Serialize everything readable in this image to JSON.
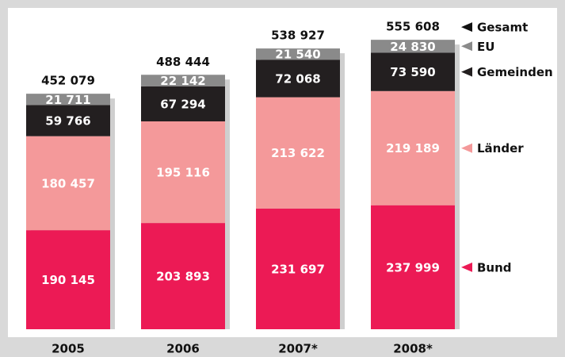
{
  "chart_data": {
    "type": "stacked-bar",
    "categories": [
      "2005",
      "2006",
      "2007*",
      "2008*"
    ],
    "series": [
      {
        "name": "Bund",
        "color": "#ec1a55",
        "values": [
          190145,
          203893,
          231697,
          237999
        ],
        "value_labels": [
          "190 145",
          "203 893",
          "231 697",
          "237 999"
        ]
      },
      {
        "name": "Länder",
        "color": "#f4999a",
        "values": [
          180457,
          195116,
          213622,
          219189
        ],
        "value_labels": [
          "180 457",
          "195 116",
          "213 622",
          "219 189"
        ]
      },
      {
        "name": "Gemeinden",
        "color": "#231f20",
        "values": [
          59766,
          67294,
          72068,
          73590
        ],
        "value_labels": [
          "59 766",
          "67 294",
          "72 068",
          "73 590"
        ]
      },
      {
        "name": "EU",
        "color": "#8a8a8a",
        "values": [
          21711,
          22142,
          21540,
          24830
        ],
        "value_labels": [
          "21 711",
          "22 142",
          "21 540",
          "24 830"
        ]
      }
    ],
    "totals": {
      "name": "Gesamt",
      "color": "#111111",
      "values": [
        452079,
        488444,
        538927,
        555608
      ],
      "value_labels": [
        "452 079",
        "488 444",
        "538 927",
        "555 608"
      ]
    },
    "ylim": [
      0,
      600000
    ]
  }
}
